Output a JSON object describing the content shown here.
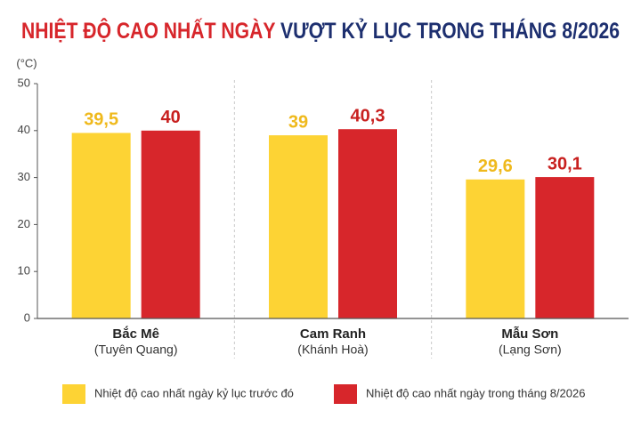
{
  "chart_data": {
    "type": "bar",
    "title": [
      "NHIỆT ĐỘ CAO NHẤT NGÀY",
      "VƯỢT KỶ LỤC TRONG THÁNG 8/2026"
    ],
    "y_label": "(°C)",
    "categories": [
      "Bắc Mê",
      "Cam Ranh",
      "Mẫu Sơn"
    ],
    "category_sublabels": [
      "(Tuyên Quang)",
      "(Khánh Hoà)",
      "(Lạng Sơn)"
    ],
    "series": [
      {
        "name": "Nhiệt độ cao nhất ngày kỷ lục trước đó",
        "color": "#fdd334",
        "label_color": "#efb91c",
        "values": [
          39.5,
          39,
          29.6
        ],
        "value_labels": [
          "39,5",
          "39",
          "29,6"
        ]
      },
      {
        "name": "Nhiệt độ cao nhất ngày trong tháng 8/2026",
        "color": "#d7262b",
        "label_color": "#c8201f",
        "values": [
          40,
          40.3,
          30.1
        ],
        "value_labels": [
          "40",
          "40,3",
          "30,1"
        ]
      }
    ],
    "ylim": [
      0,
      50
    ],
    "yticks": [
      0,
      10,
      20,
      30,
      40,
      50
    ],
    "group_separators": true,
    "legend": "bottom"
  }
}
